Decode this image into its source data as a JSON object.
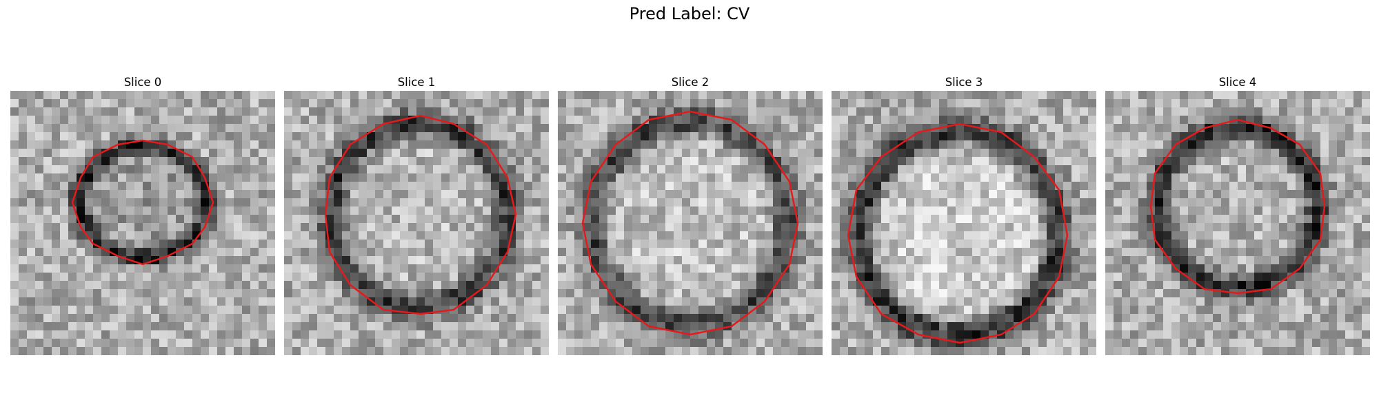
{
  "figure": {
    "title": "Pred Label: CV"
  },
  "panels": [
    {
      "title": "Slice 0",
      "contour_color": "#e41a1c",
      "center": [
        0.5,
        0.42
      ],
      "radius": [
        0.26,
        0.23
      ],
      "ring_darkness": 0.55,
      "inner_brightness": 0.62,
      "seed": 11
    },
    {
      "title": "Slice 1",
      "contour_color": "#e41a1c",
      "center": [
        0.51,
        0.47
      ],
      "radius": [
        0.36,
        0.38
      ],
      "ring_darkness": 0.45,
      "inner_brightness": 0.72,
      "seed": 23
    },
    {
      "title": "Slice 2",
      "contour_color": "#e41a1c",
      "center": [
        0.5,
        0.5
      ],
      "radius": [
        0.4,
        0.42
      ],
      "ring_darkness": 0.4,
      "inner_brightness": 0.75,
      "seed": 37
    },
    {
      "title": "Slice 3",
      "contour_color": "#e41a1c",
      "center": [
        0.48,
        0.54
      ],
      "radius": [
        0.41,
        0.42
      ],
      "ring_darkness": 0.48,
      "inner_brightness": 0.8,
      "seed": 49
    },
    {
      "title": "Slice 4",
      "contour_color": "#e41a1c",
      "center": [
        0.5,
        0.44
      ],
      "radius": [
        0.33,
        0.33
      ],
      "ring_darkness": 0.55,
      "inner_brightness": 0.7,
      "seed": 61
    }
  ]
}
